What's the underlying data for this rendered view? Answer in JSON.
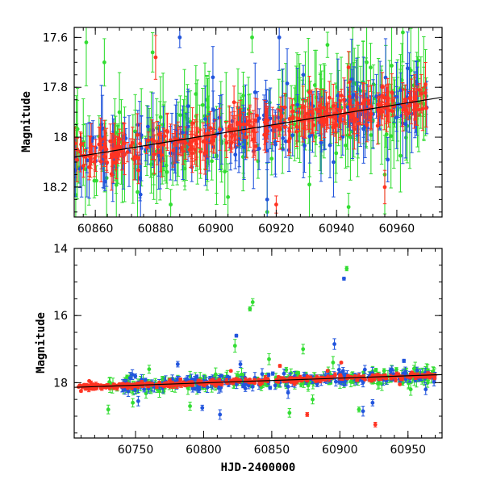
{
  "chart_data": [
    {
      "type": "scatter",
      "name": "zoomed-light-curve",
      "title": "",
      "xlabel": "",
      "ylabel": "Magnitude",
      "xlim": [
        60853,
        60975
      ],
      "ylim": [
        18.32,
        17.56
      ],
      "y_inverted": true,
      "x_ticks": [
        60860,
        60880,
        60900,
        60920,
        60940,
        60960
      ],
      "x_tick_labels": [
        "60860",
        "60880",
        "60900",
        "60920",
        "60940",
        "60960"
      ],
      "y_ticks": [
        17.6,
        17.8,
        18.0,
        18.2
      ],
      "y_tick_labels": [
        "17.6",
        "17.8",
        "18",
        "18.2"
      ],
      "trend_line": {
        "x": [
          60853,
          60975
        ],
        "y": [
          18.08,
          17.84
        ]
      },
      "series": [
        {
          "name": "green",
          "color": "#33dd33",
          "x_range": [
            60853,
            60970
          ],
          "n_points": 220,
          "scatter_mag": 0.12,
          "outliers": [
            [
              60857,
              17.62
            ],
            [
              60863,
              17.7
            ],
            [
              60868,
              17.9
            ],
            [
              60874,
              18.22
            ],
            [
              60879,
              17.66
            ],
            [
              60885,
              18.27
            ],
            [
              60897,
              17.85
            ],
            [
              60904,
              18.24
            ],
            [
              60912,
              17.6
            ],
            [
              60917,
              18.3
            ],
            [
              60925,
              17.88
            ],
            [
              60931,
              18.19
            ],
            [
              60937,
              17.63
            ],
            [
              60944,
              18.28
            ],
            [
              60950,
              17.7
            ],
            [
              60956,
              18.15
            ],
            [
              60962,
              17.58
            ]
          ]
        },
        {
          "name": "blue",
          "color": "#2255dd",
          "x_range": [
            60853,
            60970
          ],
          "n_points": 170,
          "scatter_mag": 0.09,
          "outliers": [
            [
              60862,
              17.95
            ],
            [
              60875,
              18.23
            ],
            [
              60888,
              17.6
            ],
            [
              60892,
              18.12
            ],
            [
              60899,
              17.76
            ],
            [
              60913,
              17.82
            ],
            [
              60917,
              18.25
            ],
            [
              60921,
              17.6
            ],
            [
              60929,
              17.75
            ],
            [
              60939,
              18.1
            ],
            [
              60949,
              17.84
            ],
            [
              60957,
              18.09
            ],
            [
              60966,
              17.87
            ]
          ]
        },
        {
          "name": "red",
          "color": "#ff3322",
          "x_range": [
            60853,
            60970
          ],
          "n_points": 300,
          "scatter_mag": 0.05,
          "outliers": [
            [
              60867,
              18.1
            ],
            [
              60880,
              17.68
            ],
            [
              60893,
              18.05
            ],
            [
              60906,
              17.86
            ],
            [
              60920,
              18.27
            ],
            [
              60931,
              17.82
            ],
            [
              60944,
              17.72
            ],
            [
              60956,
              18.2
            ]
          ]
        }
      ]
    },
    {
      "type": "scatter",
      "name": "full-light-curve",
      "title": "",
      "xlabel": "HJD-2400000",
      "ylabel": "Magnitude",
      "xlim": [
        60705,
        60975
      ],
      "ylim": [
        19.65,
        14.0
      ],
      "y_inverted": true,
      "x_ticks": [
        60750,
        60800,
        60850,
        60900,
        60950
      ],
      "x_tick_labels": [
        "60750",
        "60800",
        "60850",
        "60900",
        "60950"
      ],
      "y_ticks": [
        14,
        16,
        18
      ],
      "y_tick_labels": [
        "14",
        "16",
        "18"
      ],
      "trend_line": {
        "x": [
          60705,
          60975
        ],
        "y": [
          18.14,
          17.76
        ]
      },
      "series": [
        {
          "name": "green",
          "color": "#33dd33",
          "x_range": [
            60730,
            60970
          ],
          "n_points": 260,
          "scatter_mag": 0.18,
          "outliers": [
            [
              60730,
              18.8
            ],
            [
              60748,
              18.6
            ],
            [
              60760,
              17.6
            ],
            [
              60777,
              17.9
            ],
            [
              60790,
              18.7
            ],
            [
              60808,
              17.85
            ],
            [
              60823,
              16.9
            ],
            [
              60834,
              15.8
            ],
            [
              60836,
              15.6
            ],
            [
              60848,
              17.3
            ],
            [
              60863,
              18.9
            ],
            [
              60873,
              17.0
            ],
            [
              60880,
              18.5
            ],
            [
              60895,
              17.4
            ],
            [
              60905,
              14.6
            ],
            [
              60914,
              18.8
            ],
            [
              60926,
              17.8
            ],
            [
              60938,
              17.6
            ],
            [
              60952,
              18.2
            ],
            [
              60962,
              17.9
            ]
          ]
        },
        {
          "name": "blue",
          "color": "#2255dd",
          "x_range": [
            60740,
            60970
          ],
          "n_points": 200,
          "scatter_mag": 0.16,
          "outliers": [
            [
              60752,
              18.55
            ],
            [
              60781,
              17.45
            ],
            [
              60799,
              18.75
            ],
            [
              60812,
              18.95
            ],
            [
              60824,
              16.6
            ],
            [
              60827,
              17.45
            ],
            [
              60862,
              18.3
            ],
            [
              60896,
              16.85
            ],
            [
              60903,
              14.9
            ],
            [
              60917,
              18.85
            ],
            [
              60924,
              18.6
            ],
            [
              60947,
              17.35
            ],
            [
              60963,
              18.2
            ]
          ]
        },
        {
          "name": "red",
          "color": "#ff3322",
          "x_range": [
            60708,
            60970
          ],
          "n_points": 330,
          "scatter_mag": 0.07,
          "outliers": [
            [
              60710,
              18.25
            ],
            [
              60716,
              17.95
            ],
            [
              60783,
              17.9
            ],
            [
              60820,
              17.65
            ],
            [
              60856,
              17.5
            ],
            [
              60876,
              18.95
            ],
            [
              60891,
              17.65
            ],
            [
              60901,
              17.4
            ],
            [
              60923,
              17.9
            ],
            [
              60926,
              19.25
            ],
            [
              60944,
              18.05
            ]
          ]
        }
      ]
    }
  ]
}
